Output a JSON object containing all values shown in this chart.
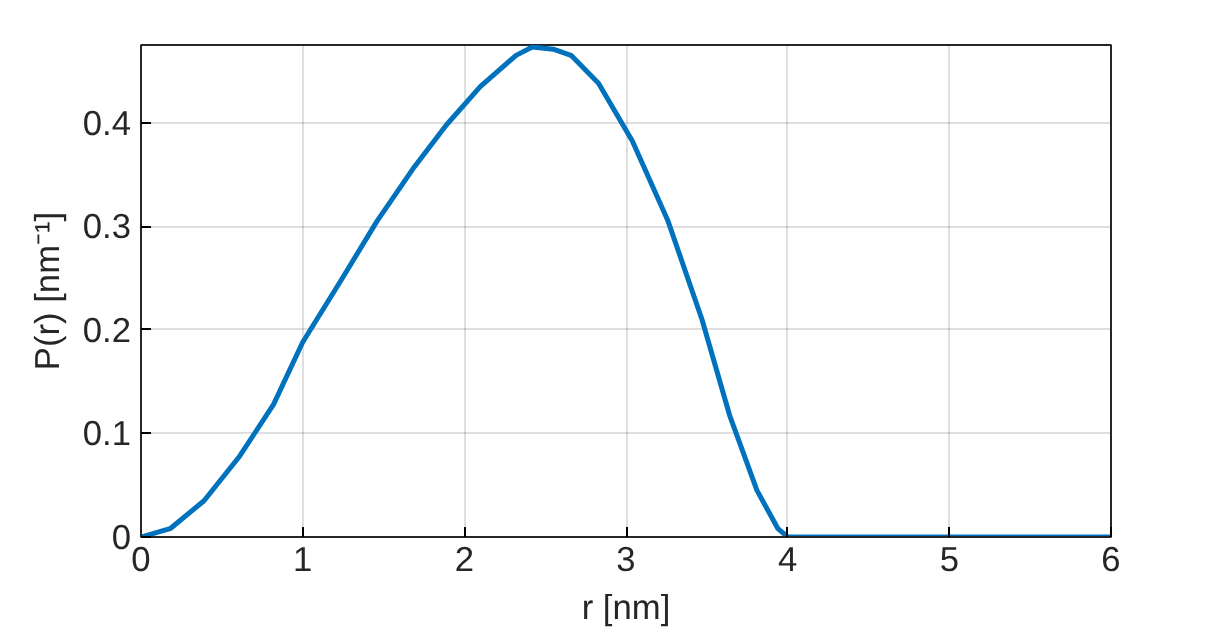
{
  "chart_data": {
    "type": "line",
    "xlabel": "r [nm]",
    "ylabel": "P(r) [nm⁻¹]",
    "xlim": [
      0,
      6
    ],
    "ylim": [
      0,
      0.475
    ],
    "xticks": [
      0,
      1,
      2,
      3,
      4,
      5,
      6
    ],
    "yticks": [
      0,
      0.1,
      0.2,
      0.3,
      0.4
    ],
    "grid": true,
    "line_style": "solid",
    "series": [
      {
        "color": "#0072bd",
        "x": [
          0,
          0.18,
          0.39,
          0.61,
          0.82,
          1.0,
          1.25,
          1.46,
          1.68,
          1.89,
          2.1,
          2.32,
          2.42,
          2.55,
          2.66,
          2.83,
          3.04,
          3.26,
          3.47,
          3.64,
          3.81,
          3.94,
          4.0,
          5.0,
          6.0
        ],
        "values": [
          0,
          0.008,
          0.035,
          0.078,
          0.128,
          0.188,
          0.251,
          0.305,
          0.355,
          0.398,
          0.435,
          0.465,
          0.473,
          0.471,
          0.465,
          0.438,
          0.382,
          0.305,
          0.21,
          0.118,
          0.045,
          0.008,
          0,
          0,
          0
        ]
      }
    ]
  }
}
